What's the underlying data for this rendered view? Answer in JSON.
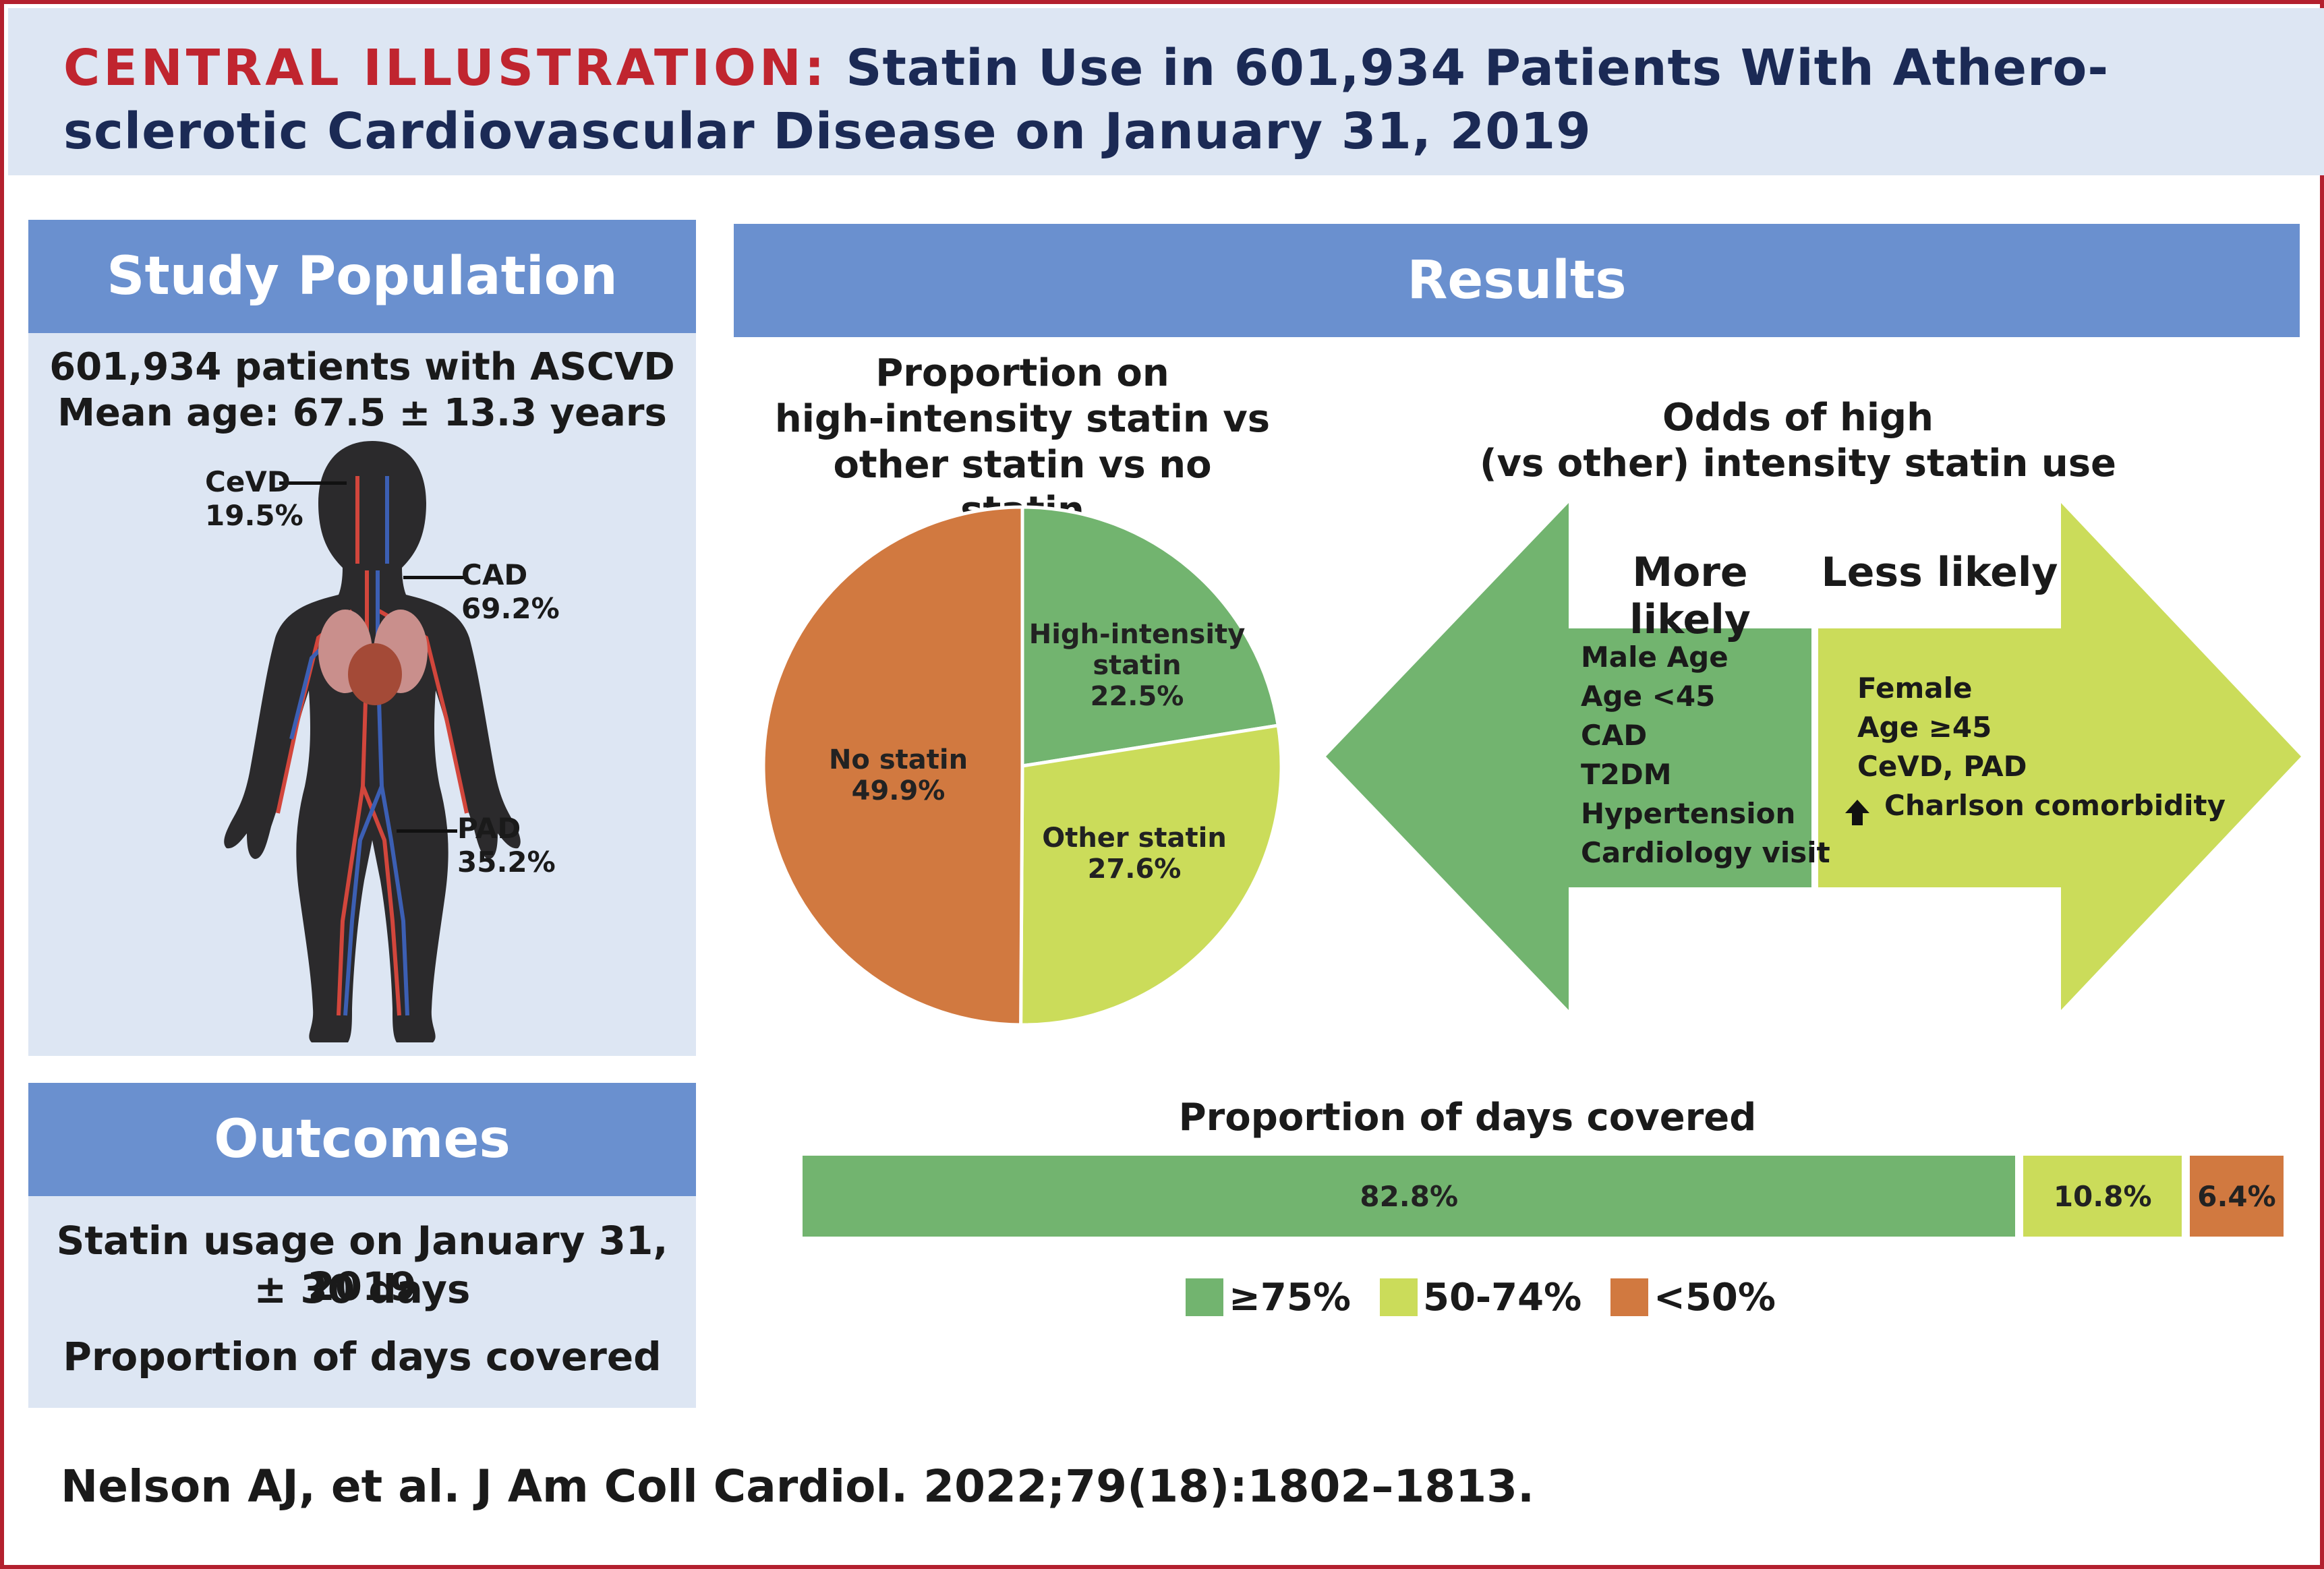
{
  "header": {
    "lead": "CENTRAL ILLUSTRATION:",
    "title": "Statin Use in 601,934 Patients With Athero-sclerotic Cardiovascular Disease on January 31, 2019"
  },
  "study_population": {
    "heading": "Study Population",
    "line1": "601,934  patients with ASCVD",
    "line2": "Mean age: 67.5 ± 13.3 years",
    "labels": [
      {
        "name": "CeVD",
        "value": "19.5%"
      },
      {
        "name": "CAD",
        "value": "69.2%"
      },
      {
        "name": "PAD",
        "value": "35.2%"
      }
    ]
  },
  "outcomes": {
    "heading": "Outcomes",
    "line1": "Statin usage on January 31, 2019",
    "line2": "± 30 days",
    "line3": "Proportion of days covered"
  },
  "results": {
    "heading": "Results",
    "pie": {
      "title_l1": "Proportion on",
      "title_l2": "high-intensity statin vs",
      "title_l3": "other statin vs no statin"
    },
    "odds": {
      "title_l1": "Odds of high",
      "title_l2": "(vs other) intensity statin use",
      "more_heading": "More likely",
      "less_heading": "Less likely",
      "more": [
        "Male Age",
        "Age <45",
        "CAD",
        "T2DM",
        "Hypertension",
        "Cardiology visit"
      ],
      "less": [
        "Female",
        "Age ≥45",
        "CeVD, PAD",
        "Charlson comorbidity"
      ],
      "colors": {
        "more": "#72b46f",
        "less": "#cbdc5a"
      }
    },
    "pdc": {
      "title": "Proportion of days covered"
    }
  },
  "chart_data": [
    {
      "type": "pie",
      "title": "Proportion on high-intensity statin vs other statin vs no statin",
      "slices": [
        {
          "name_l1": "High-intensity",
          "name_l2": "statin",
          "value": 22.5,
          "label": "22.5%",
          "color": "#72b46f"
        },
        {
          "name_l1": "Other statin",
          "name_l2": "",
          "value": 27.6,
          "label": "27.6%",
          "color": "#cbdc5a"
        },
        {
          "name_l1": "No statin",
          "name_l2": "",
          "value": 49.9,
          "label": "49.9%",
          "color": "#d17940"
        }
      ]
    },
    {
      "type": "bar",
      "orientation": "horizontal-stacked",
      "title": "Proportion of days covered",
      "categories": [
        "≥75%",
        "50-74%",
        "<50%"
      ],
      "values": [
        82.8,
        10.8,
        6.4
      ],
      "labels": [
        "82.8%",
        "10.8%",
        "6.4%"
      ],
      "colors": [
        "#72b46f",
        "#cbdc5a",
        "#d17940"
      ],
      "legend_placement": "bottom"
    }
  ],
  "citation": "Nelson AJ, et al. J Am Coll Cardiol. 2022;79(18):1802–1813."
}
